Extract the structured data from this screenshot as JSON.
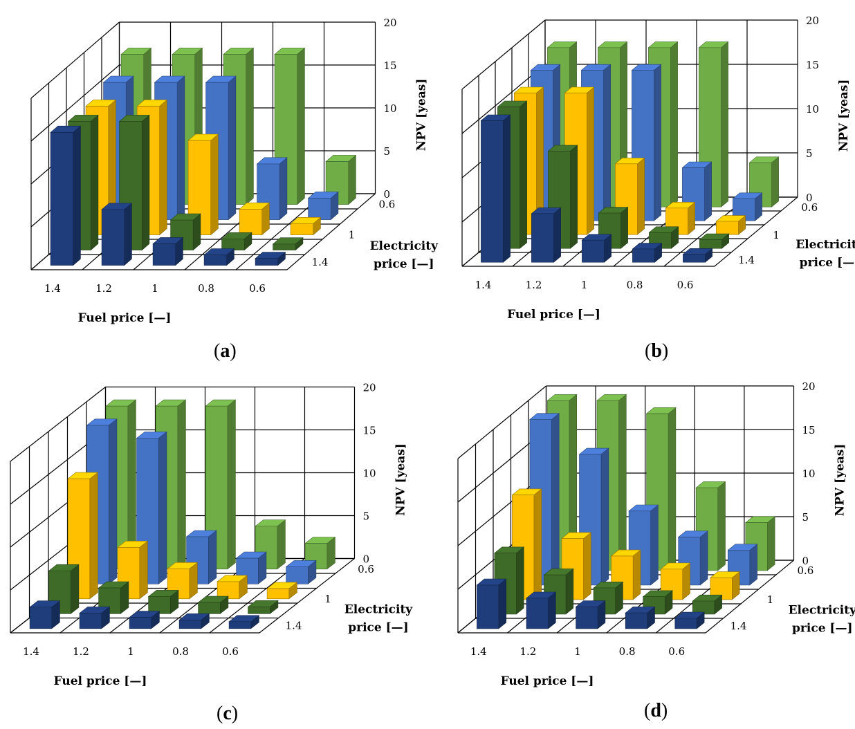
{
  "figure": {
    "panels": [
      {
        "label": "a",
        "paren_open": "(",
        "paren_close": ")"
      },
      {
        "label": "b",
        "paren_open": "(",
        "paren_close": ")"
      },
      {
        "label": "c",
        "paren_open": "(",
        "paren_close": ")"
      },
      {
        "label": "d",
        "paren_open": "(",
        "paren_close": ")"
      }
    ]
  },
  "chart_data": [
    {
      "type": "bar3d",
      "panel": "a",
      "x_categories": [
        "1.4",
        "1.2",
        "1",
        "0.8",
        "0.6"
      ],
      "depth_tick_labels": [
        "0.6",
        "1",
        "1.4"
      ],
      "depth_series": [
        "1.4",
        "1.2",
        "1",
        "0.8",
        "0.6"
      ],
      "ylim": [
        0,
        20
      ],
      "yticks": [
        "0",
        "5",
        "10",
        "15",
        "20"
      ],
      "xlabel": "Fuel price [—]",
      "zlabel": [
        "Electricity",
        "price [—]"
      ],
      "ylabel": "NPV [yeas]",
      "colors": [
        "#1f3d7a",
        "#3e6b27",
        "#ffc000",
        "#4472c4",
        "#70ad47"
      ],
      "values": [
        [
          15.5,
          6.5,
          2.5,
          1.2,
          0.8
        ],
        [
          15.0,
          15.0,
          3.5,
          1.3,
          0.7
        ],
        [
          15.0,
          15.0,
          11.0,
          3.0,
          1.3
        ],
        [
          16.0,
          16.0,
          16.0,
          6.5,
          2.5
        ],
        [
          17.5,
          17.5,
          17.5,
          17.5,
          5.0
        ]
      ]
    },
    {
      "type": "bar3d",
      "panel": "b",
      "x_categories": [
        "1.4",
        "1.2",
        "1",
        "0.8",
        "0.6"
      ],
      "depth_tick_labels": [
        "0.6",
        "1",
        "1.4"
      ],
      "depth_series": [
        "1.4",
        "1.2",
        "1",
        "0.8",
        "0.6"
      ],
      "ylim": [
        0,
        20
      ],
      "yticks": [
        "0",
        "5",
        "10",
        "15",
        "20"
      ],
      "xlabel": "Fuel price [—]",
      "zlabel": [
        "Electricity",
        "price [—]"
      ],
      "ylabel": "NPV [yeas]",
      "colors": [
        "#1f3d7a",
        "#3e6b27",
        "#ffc000",
        "#4472c4",
        "#70ad47"
      ],
      "values": [
        [
          16.0,
          5.5,
          2.5,
          1.5,
          0.9
        ],
        [
          16.0,
          11.0,
          4.0,
          1.8,
          1.0
        ],
        [
          16.0,
          16.0,
          8.0,
          3.0,
          1.5
        ],
        [
          17.0,
          17.0,
          17.0,
          6.0,
          2.5
        ],
        [
          18.0,
          18.0,
          18.0,
          18.0,
          5.0
        ]
      ]
    },
    {
      "type": "bar3d",
      "panel": "c",
      "x_categories": [
        "1.4",
        "1.2",
        "1",
        "0.8",
        "0.6"
      ],
      "depth_tick_labels": [
        "0.6",
        "1",
        "1.4"
      ],
      "depth_series": [
        "1.4",
        "1.2",
        "1",
        "0.8",
        "0.6"
      ],
      "ylim": [
        0,
        20
      ],
      "yticks": [
        "0",
        "5",
        "10",
        "15",
        "20"
      ],
      "xlabel": "Fuel price [—]",
      "zlabel": [
        "Electricity",
        "price [—]"
      ],
      "ylabel": "NPV [yeas]",
      "colors": [
        "#1f3d7a",
        "#3e6b27",
        "#ffc000",
        "#4472c4",
        "#70ad47"
      ],
      "values": [
        [
          2.5,
          1.8,
          1.3,
          1.0,
          0.8
        ],
        [
          5.0,
          3.0,
          2.0,
          1.3,
          0.8
        ],
        [
          14.0,
          6.0,
          3.5,
          2.0,
          1.2
        ],
        [
          18.5,
          17.0,
          5.5,
          3.0,
          2.0
        ],
        [
          19.0,
          19.0,
          19.0,
          5.0,
          3.0
        ]
      ]
    },
    {
      "type": "bar3d",
      "panel": "d",
      "x_categories": [
        "1.4",
        "1.2",
        "1",
        "0.8",
        "0.6"
      ],
      "depth_tick_labels": [
        "0.6",
        "1",
        "1.4"
      ],
      "depth_series": [
        "1.4",
        "1.2",
        "1",
        "0.8",
        "0.6"
      ],
      "ylim": [
        0,
        20
      ],
      "yticks": [
        "0",
        "5",
        "10",
        "15",
        "20"
      ],
      "xlabel": "Fuel price [—]",
      "zlabel": [
        "Electricity",
        "price [—]"
      ],
      "ylabel": "NPV [yeas]",
      "colors": [
        "#1f3d7a",
        "#3e6b27",
        "#ffc000",
        "#4472c4",
        "#70ad47"
      ],
      "values": [
        [
          5.0,
          3.5,
          2.5,
          1.8,
          1.2
        ],
        [
          7.0,
          4.5,
          3.0,
          2.0,
          1.5
        ],
        [
          12.0,
          7.0,
          5.0,
          3.5,
          2.5
        ],
        [
          19.0,
          15.0,
          8.5,
          5.5,
          4.0
        ],
        [
          19.5,
          19.5,
          18.0,
          9.5,
          5.5
        ]
      ]
    }
  ]
}
